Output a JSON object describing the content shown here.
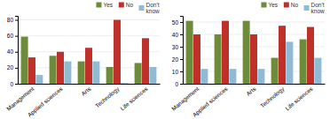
{
  "chart_data": [
    {
      "type": "bar",
      "categories": [
        "Management",
        "Applied sciences",
        "Arts",
        "Technology",
        "Life sciences"
      ],
      "series": [
        {
          "name": "Yes",
          "color": "#6d8b3a",
          "values": [
            59,
            35,
            28,
            21,
            26
          ]
        },
        {
          "name": "No",
          "color": "#c0302a",
          "values": [
            33,
            40,
            45,
            80,
            57
          ]
        },
        {
          "name": "Don't\nknow",
          "color": "#8fbcd4",
          "values": [
            11,
            28,
            28,
            1,
            21
          ]
        }
      ],
      "ylim": [
        0,
        85
      ],
      "yticks": [
        0,
        20,
        40,
        60,
        80
      ],
      "grid": true,
      "legend": "upper right"
    },
    {
      "type": "bar",
      "categories": [
        "Management",
        "Applied sciences",
        "Arts",
        "Technology",
        "Life sciences"
      ],
      "series": [
        {
          "name": "Yes",
          "color": "#6d8b3a",
          "values": [
            51,
            40,
            51,
            21,
            36
          ]
        },
        {
          "name": "No",
          "color": "#c0302a",
          "values": [
            40,
            51,
            40,
            47,
            46
          ]
        },
        {
          "name": "Don't\nknow",
          "color": "#8fbcd4",
          "values": [
            12,
            12,
            12,
            34,
            21
          ]
        }
      ],
      "ylim": [
        0,
        55
      ],
      "yticks": [
        0,
        10,
        20,
        30,
        40,
        50
      ],
      "grid": true,
      "legend": "upper right"
    }
  ]
}
